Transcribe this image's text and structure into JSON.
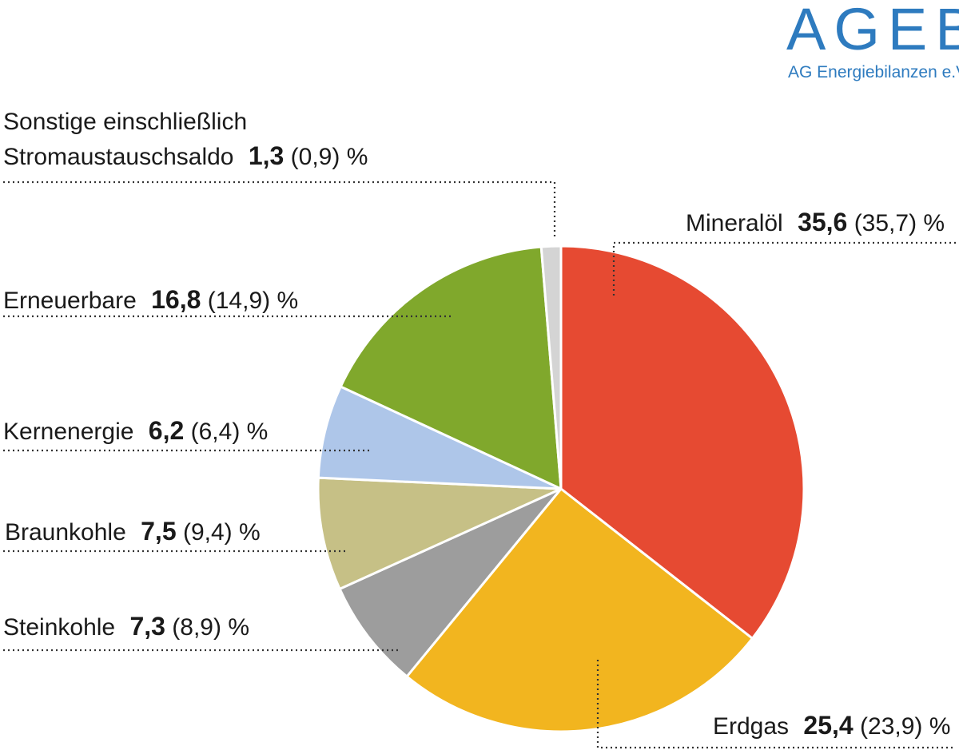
{
  "logo": {
    "main": "AGEB",
    "sub": "AG Energiebilanzen e.V."
  },
  "chart_data": {
    "type": "pie",
    "unit": "%",
    "start": "top",
    "direction": "clockwise",
    "slices": [
      {
        "label": "Mineralöl",
        "value": 35.6,
        "prev": "(35,7)",
        "value_text": "35,6",
        "color": "#e64a32"
      },
      {
        "label": "Erdgas",
        "value": 25.4,
        "prev": "(23,9)",
        "value_text": "25,4",
        "color": "#f2b51f"
      },
      {
        "label": "Steinkohle",
        "value": 7.3,
        "prev": "(8,9)",
        "value_text": "7,3",
        "color": "#9d9d9d"
      },
      {
        "label": "Braunkohle",
        "value": 7.5,
        "prev": "(9,4)",
        "value_text": "7,5",
        "color": "#c6c086"
      },
      {
        "label": "Kernenergie",
        "value": 6.2,
        "prev": "(6,4)",
        "value_text": "6,2",
        "color": "#aec6e9"
      },
      {
        "label": "Erneuerbare",
        "value": 16.8,
        "prev": "(14,9)",
        "value_text": "16,8",
        "color": "#80a82c"
      },
      {
        "label": "Sonstige einschließlich Stromaustauschsaldo",
        "label_line1": "Sonstige einschließlich",
        "label_line2": "Stromaustauschsaldo",
        "value": 1.3,
        "prev": "(0,9)",
        "value_text": "1,3",
        "color": "#d4d4d4"
      }
    ]
  }
}
